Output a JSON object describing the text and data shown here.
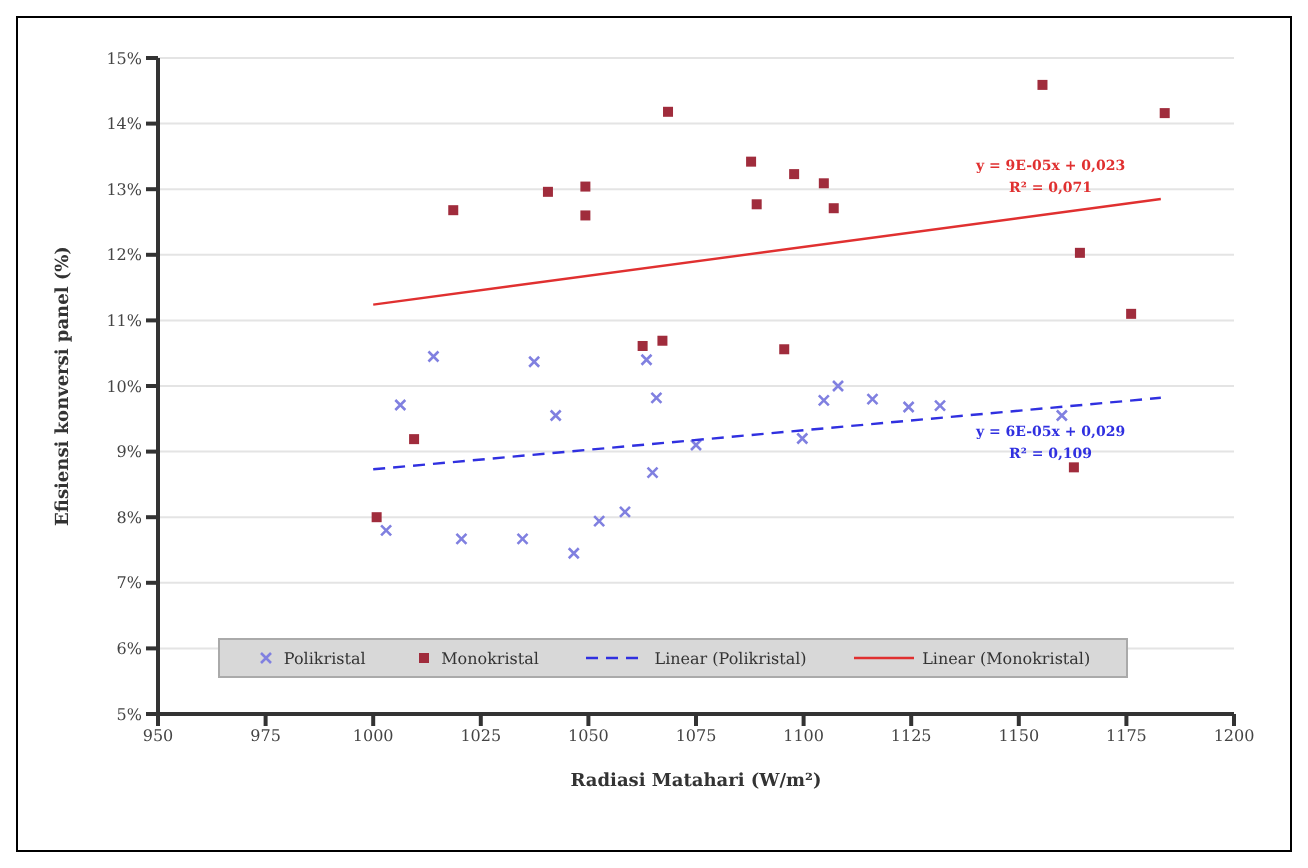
{
  "chart_data": {
    "type": "scatter",
    "xlabel": "Radiasi Matahari (W/m²)",
    "ylabel": "Efisiensi konversi panel (%)",
    "xlim": [
      950,
      1200
    ],
    "xticks": [
      950,
      975,
      1000,
      1025,
      1050,
      1075,
      1100,
      1125,
      1150,
      1175,
      1200
    ],
    "ylim": [
      5,
      15
    ],
    "yticks": [
      {
        "value": 5,
        "label": "5%"
      },
      {
        "value": 6,
        "label": "6%"
      },
      {
        "value": 7,
        "label": "7%"
      },
      {
        "value": 8,
        "label": "8%"
      },
      {
        "value": 9,
        "label": "9%"
      },
      {
        "value": 10,
        "label": "10%"
      },
      {
        "value": 11,
        "label": "11%"
      },
      {
        "value": 12,
        "label": "12%"
      },
      {
        "value": 13,
        "label": "13%"
      },
      {
        "value": 14,
        "label": "14%"
      },
      {
        "value": 15,
        "label": "15%"
      }
    ],
    "grid": "y",
    "legend": "bottom",
    "series": [
      {
        "name": "Polikristal",
        "marker": "cross",
        "color": "#8080e0",
        "x": [
          1014,
          1037.4,
          1063.5,
          1065.8,
          1108,
          1006.3,
          1003,
          1020.5,
          1034.7,
          1042.4,
          1046.6,
          1052.5,
          1058.5,
          1064.9,
          1104.7,
          1116,
          1124.4,
          1131.7,
          1099.7,
          1075,
          1160
        ],
        "values": [
          10.45,
          10.37,
          10.4,
          9.82,
          10.0,
          9.71,
          7.8,
          7.67,
          7.67,
          9.55,
          7.45,
          7.94,
          8.08,
          8.68,
          9.78,
          9.8,
          9.68,
          9.7,
          9.2,
          9.1,
          9.55
        ]
      },
      {
        "name": "Monokristal",
        "marker": "square",
        "color": "#a02c3c",
        "x": [
          1018.6,
          1040.6,
          1049.3,
          1049.3,
          1062.6,
          1068.5,
          1155.5,
          1183.9,
          1087.8,
          1097.8,
          1104.7,
          1089.1,
          1107,
          1164.2,
          1176.1,
          1067.2,
          1095.5,
          1000.8,
          1009.5,
          1162.8
        ],
        "values": [
          12.68,
          12.96,
          13.04,
          12.6,
          10.61,
          14.18,
          14.59,
          14.16,
          13.42,
          13.23,
          13.09,
          12.77,
          12.71,
          12.03,
          11.1,
          10.69,
          10.56,
          8.0,
          9.19,
          8.76
        ]
      },
      {
        "name": "Linear (Polikristal)",
        "type": "line",
        "marker": "none",
        "line_style": "dashed",
        "color": "#3030e0",
        "x": [
          1000,
          1183
        ],
        "values": [
          8.73,
          9.82
        ]
      },
      {
        "name": "Linear (Monokristal)",
        "type": "line",
        "marker": "none",
        "line_style": "solid",
        "color": "#e03030",
        "x": [
          1000,
          1183
        ],
        "values": [
          11.24,
          12.85
        ]
      }
    ],
    "annotations": [
      "y = 9E-05x + 0,023",
      "R² = 0,071",
      "y = 6E-05x + 0,029",
      "R² = 0,109"
    ]
  }
}
